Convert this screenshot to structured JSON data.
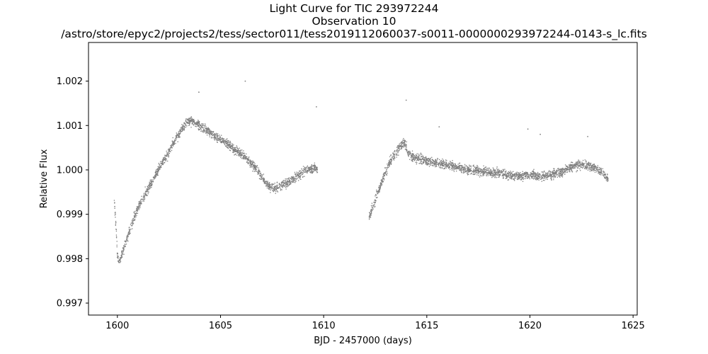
{
  "chart_data": {
    "type": "scatter",
    "title_lines": [
      "Light Curve for TIC 293972244",
      "Observation 10",
      "/astro/store/epyc2/projects2/tess/sector011/tess2019112060037-s0011-0000000293972244-0143-s_lc.fits"
    ],
    "xlabel": "BJD - 2457000 (days)",
    "ylabel": "Relative Flux",
    "xlim": [
      1598.6,
      1625.2
    ],
    "ylim": [
      0.99673,
      1.00287
    ],
    "xticks": [
      1600,
      1605,
      1610,
      1615,
      1620,
      1625
    ],
    "yticks": [
      0.997,
      0.998,
      0.999,
      1.0,
      1.001,
      1.002
    ],
    "ytick_labels": [
      "0.997",
      "0.998",
      "0.999",
      "1.000",
      "1.001",
      "1.002"
    ],
    "grid": false,
    "point_color": "#7f7f7f",
    "series": [
      {
        "segments": [
          {
            "x": [
              1599.85,
              1599.9,
              1599.95,
              1600.0,
              1600.05,
              1600.1,
              1600.2,
              1600.4,
              1600.6,
              1600.8,
              1601.0,
              1601.3,
              1601.6,
              1601.9,
              1602.2,
              1602.5,
              1602.8,
              1603.1,
              1603.4,
              1603.6,
              1603.8,
              1604.0,
              1604.3,
              1604.6,
              1604.9,
              1605.2,
              1605.5,
              1605.8,
              1606.1,
              1606.4,
              1606.7,
              1607.0,
              1607.3,
              1607.6,
              1607.9,
              1608.2,
              1608.5,
              1608.8,
              1609.1,
              1609.4,
              1609.7
            ],
            "y": [
              0.99935,
              0.99895,
              0.9986,
              0.9981,
              0.99793,
              0.99792,
              0.99808,
              0.99835,
              0.99865,
              0.9989,
              0.99915,
              0.9994,
              0.99968,
              0.99993,
              1.00018,
              1.00042,
              1.00068,
              1.00092,
              1.00108,
              1.00112,
              1.00106,
              1.00098,
              1.0009,
              1.0008,
              1.0007,
              1.00062,
              1.00052,
              1.00042,
              1.00032,
              1.00018,
              1.00005,
              0.99985,
              0.99965,
              0.99958,
              0.99962,
              0.9997,
              0.99978,
              0.99988,
              0.99998,
              1.00004,
              1.00002
            ]
          },
          {
            "x": [
              1612.2,
              1612.3,
              1612.4,
              1612.6,
              1612.8,
              1613.0,
              1613.2,
              1613.4,
              1613.6,
              1613.8,
              1613.95,
              1614.1,
              1614.3,
              1614.6,
              1615.0,
              1615.5,
              1616.0,
              1616.5,
              1617.0,
              1617.5,
              1618.0,
              1618.5,
              1619.0,
              1619.5,
              1620.0,
              1620.5,
              1621.0,
              1621.5,
              1622.0,
              1622.3,
              1622.6,
              1622.9,
              1623.2,
              1623.5,
              1623.8
            ],
            "y": [
              0.99895,
              0.99905,
              0.9992,
              0.99945,
              0.9997,
              0.99995,
              1.00018,
              1.00032,
              1.00045,
              1.00058,
              1.0006,
              1.00038,
              1.00028,
              1.00025,
              1.0002,
              1.00015,
              1.00012,
              1.00005,
              1.0,
              0.99998,
              0.99995,
              0.99992,
              0.99988,
              0.99985,
              0.99988,
              0.99985,
              0.9999,
              0.99995,
              1.00005,
              1.00012,
              1.00012,
              1.00008,
              1.00002,
              0.99995,
              0.9998
            ]
          }
        ],
        "outliers": {
          "x": [
            1603.95,
            1606.2,
            1609.65,
            1614.0,
            1615.6,
            1619.9,
            1620.5,
            1622.8
          ],
          "y": [
            1.00175,
            1.002,
            1.00142,
            1.00157,
            1.00097,
            1.00092,
            1.0008,
            1.00075
          ]
        }
      }
    ]
  }
}
